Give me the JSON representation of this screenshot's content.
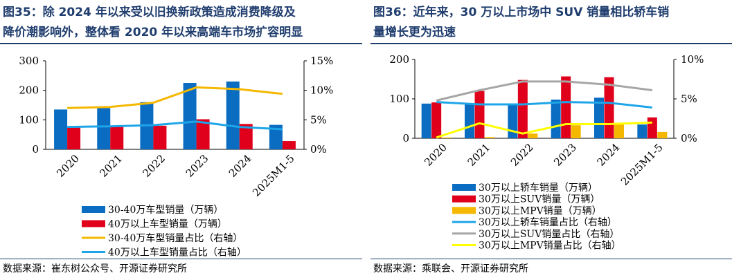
{
  "figures": [
    {
      "title_line1": "图35：除 2024 年以来受以旧换新政策造成消费降级及",
      "title_line2": "降价潮影响外，整体看 2020 年以来高端车市场扩容明显",
      "source": "数据来源：崔东树公众号、开源证券研究所"
    },
    {
      "title_line1": "图36：近年来，30 万以上市场中 SUV 销量相比轿车销",
      "title_line2": "量增长更为迅速",
      "source": "数据来源：乘联会、开源证券研究所"
    }
  ],
  "chart_data": [
    {
      "type": "bar",
      "categories": [
        "2020",
        "2021",
        "2022",
        "2023",
        "2024",
        "2025M1-5"
      ],
      "y_left": {
        "min": 0,
        "max": 300,
        "ticks": [
          0,
          100,
          200,
          300
        ],
        "tick_labels": [
          "0",
          "100",
          "200",
          "300"
        ]
      },
      "y_right": {
        "min": 0,
        "max": 15,
        "ticks": [
          0,
          5,
          10,
          15
        ],
        "tick_labels": [
          "0%",
          "5%",
          "10%",
          "15%"
        ]
      },
      "grid": false,
      "legend_position": "bottom",
      "series": [
        {
          "name": "30-40万车型销量（万辆）",
          "type": "bar",
          "axis": "left",
          "color": "#0a6dc2",
          "values": [
            135,
            140,
            160,
            225,
            230,
            83
          ]
        },
        {
          "name": "40万以上车型销量（万辆）",
          "type": "bar",
          "axis": "left",
          "color": "#e0001b",
          "values": [
            75,
            78,
            80,
            102,
            86,
            28
          ]
        },
        {
          "name": "30-40万车型销量占比（右轴）",
          "type": "line",
          "axis": "right",
          "color": "#f5b800",
          "values": [
            7,
            7.2,
            7.9,
            10.5,
            10.2,
            9.4
          ]
        },
        {
          "name": "40万以上车型销量占比（右轴）",
          "type": "line",
          "axis": "right",
          "color": "#1ea5e8",
          "values": [
            3.8,
            3.9,
            4.1,
            4.7,
            3.8,
            3.4
          ]
        }
      ]
    },
    {
      "type": "bar",
      "categories": [
        "2020",
        "2021",
        "2022",
        "2023",
        "2024",
        "2025M1-5"
      ],
      "y_left": {
        "min": 0,
        "max": 200,
        "ticks": [
          0,
          100,
          200
        ],
        "tick_labels": [
          "0",
          "100",
          "200"
        ]
      },
      "y_right": {
        "min": 0,
        "max": 10,
        "ticks": [
          0,
          5,
          10
        ],
        "tick_labels": [
          "0%",
          "5%",
          "10%"
        ]
      },
      "grid": false,
      "legend_position": "bottom",
      "series": [
        {
          "name": "30万以上轿车销量（万辆）",
          "type": "bar",
          "axis": "left",
          "color": "#0a6dc2",
          "values": [
            88,
            87,
            87,
            98,
            103,
            35
          ]
        },
        {
          "name": "30万以上SUV销量（万辆）",
          "type": "bar",
          "axis": "left",
          "color": "#e0001b",
          "values": [
            91,
            120,
            148,
            157,
            155,
            53
          ]
        },
        {
          "name": "30万以上MPV销量（万辆）",
          "type": "bar",
          "axis": "left",
          "color": "#f5b800",
          "values": [
            2,
            3,
            12,
            33,
            38,
            16
          ]
        },
        {
          "name": "30万以上轿车销量占比（右轴）",
          "type": "line",
          "axis": "right",
          "color": "#1ea5e8",
          "values": [
            4.6,
            4.3,
            4.3,
            4.6,
            4.5,
            3.9
          ]
        },
        {
          "name": "30万以上SUV销量占比（右轴）",
          "type": "line",
          "axis": "right",
          "color": "#a6a6a6",
          "values": [
            4.8,
            6.1,
            7.2,
            7.2,
            6.8,
            6.1
          ]
        },
        {
          "name": "30万以上MPV销量占比（右轴）",
          "type": "line",
          "axis": "right",
          "color": "#ffff00",
          "values": [
            0.1,
            1.9,
            0.6,
            1.8,
            1.8,
            2
          ]
        }
      ]
    }
  ]
}
